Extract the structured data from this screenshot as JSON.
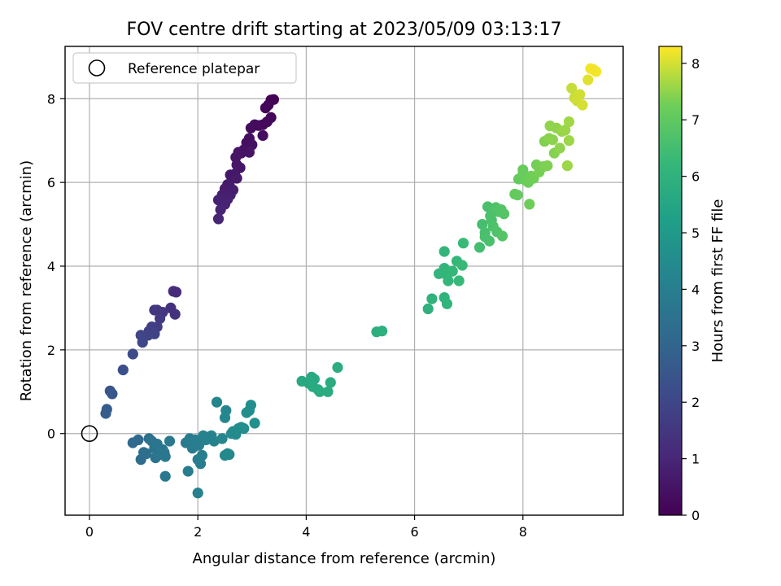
{
  "chart_data": {
    "type": "scatter",
    "title": "FOV centre drift starting at 2023/05/09 03:13:17",
    "xlabel": "Angular distance from reference (arcmin)",
    "ylabel": "Rotation from reference (arcmin)",
    "xlim": [
      -0.45,
      9.85
    ],
    "ylim": [
      -1.95,
      9.25
    ],
    "xticks": [
      0,
      2,
      4,
      6,
      8
    ],
    "yticks": [
      0,
      2,
      4,
      6,
      8
    ],
    "grid": true,
    "legend": {
      "placement": "top-left",
      "entries": [
        "Reference platepar"
      ]
    },
    "reference_point": {
      "x": 0,
      "y": 0,
      "label": "Reference platepar"
    },
    "colorbar": {
      "label": "Hours from first FF file",
      "range": [
        0,
        8.3
      ],
      "ticks": [
        0,
        1,
        2,
        3,
        4,
        5,
        6,
        7,
        8
      ],
      "colormap": "viridis"
    },
    "series": [
      {
        "points": [
          [
            3.4,
            7.98
          ],
          [
            3.35,
            7.97
          ],
          [
            3.3,
            7.85
          ],
          [
            3.25,
            7.78
          ],
          [
            3.35,
            7.55
          ],
          [
            3.28,
            7.45
          ],
          [
            3.2,
            7.38
          ],
          [
            3.12,
            7.36
          ],
          [
            3.05,
            7.38
          ],
          [
            2.98,
            7.3
          ],
          [
            3.2,
            7.12
          ],
          [
            2.95,
            7.05
          ],
          [
            2.9,
            6.95
          ],
          [
            3.0,
            6.9
          ],
          [
            2.85,
            6.78
          ],
          [
            2.8,
            6.7
          ],
          [
            2.75,
            6.72
          ],
          [
            2.95,
            6.72
          ],
          [
            2.7,
            6.6
          ],
          [
            2.72,
            6.42
          ],
          [
            2.78,
            6.35
          ],
          [
            2.68,
            6.2
          ],
          [
            2.6,
            6.18
          ],
          [
            2.72,
            6.1
          ],
          [
            2.58,
            5.95
          ],
          [
            2.55,
            5.95
          ],
          [
            2.5,
            5.85
          ],
          [
            2.65,
            5.82
          ],
          [
            2.6,
            5.7
          ],
          [
            2.45,
            5.7
          ],
          [
            2.55,
            5.6
          ],
          [
            2.38,
            5.58
          ],
          [
            2.45,
            5.55
          ],
          [
            2.5,
            5.48
          ],
          [
            2.42,
            5.35
          ],
          [
            2.38,
            5.13
          ]
        ],
        "hours": [
          0.02,
          0.05,
          0.08,
          0.12,
          0.15,
          0.18,
          0.22,
          0.25,
          0.28,
          0.3,
          0.32,
          0.35,
          0.38,
          0.4,
          0.42,
          0.45,
          0.48,
          0.5,
          0.52,
          0.55,
          0.58,
          0.6,
          0.62,
          0.65,
          0.68,
          0.7,
          0.72,
          0.75,
          0.78,
          0.8,
          0.82,
          0.85,
          0.88,
          0.9,
          0.92,
          0.95
        ]
      },
      {
        "points": [
          [
            1.6,
            3.38
          ],
          [
            1.55,
            3.4
          ],
          [
            1.5,
            3.0
          ],
          [
            1.58,
            2.85
          ],
          [
            1.35,
            2.9
          ],
          [
            1.25,
            2.95
          ],
          [
            1.2,
            2.95
          ],
          [
            1.3,
            2.75
          ],
          [
            1.25,
            2.55
          ],
          [
            1.15,
            2.55
          ],
          [
            1.1,
            2.45
          ],
          [
            1.2,
            2.38
          ],
          [
            1.08,
            2.35
          ],
          [
            0.95,
            2.35
          ],
          [
            0.98,
            2.18
          ],
          [
            0.8,
            1.9
          ],
          [
            0.62,
            1.52
          ],
          [
            0.38,
            1.02
          ],
          [
            0.42,
            0.95
          ],
          [
            0.32,
            0.58
          ],
          [
            0.3,
            0.48
          ]
        ],
        "hours": [
          1.15,
          1.2,
          1.3,
          1.35,
          1.45,
          1.5,
          1.55,
          1.6,
          1.7,
          1.75,
          1.8,
          1.85,
          1.9,
          1.95,
          2.0,
          2.1,
          2.3,
          2.5,
          2.55,
          2.7,
          2.75
        ]
      },
      {
        "points": [
          [
            0.8,
            -0.22
          ],
          [
            0.9,
            -0.15
          ],
          [
            0.95,
            -0.62
          ],
          [
            1.0,
            -0.45
          ],
          [
            1.05,
            -0.48
          ],
          [
            1.1,
            -0.12
          ],
          [
            1.15,
            -0.18
          ],
          [
            1.2,
            -0.35
          ],
          [
            1.22,
            -0.58
          ],
          [
            1.25,
            -0.25
          ],
          [
            1.3,
            -0.5
          ],
          [
            1.35,
            -0.38
          ],
          [
            1.38,
            -0.45
          ],
          [
            1.4,
            -0.55
          ],
          [
            1.4,
            -1.02
          ],
          [
            1.48,
            -0.18
          ],
          [
            1.78,
            -0.22
          ],
          [
            1.85,
            -0.12
          ],
          [
            1.9,
            -0.35
          ],
          [
            1.82,
            -0.9
          ],
          [
            1.95,
            -0.15
          ],
          [
            2.02,
            -0.28
          ],
          [
            2.0,
            -0.62
          ],
          [
            2.05,
            -0.72
          ],
          [
            2.08,
            -0.52
          ],
          [
            2.0,
            -1.42
          ],
          [
            2.1,
            -0.05
          ],
          [
            2.15,
            -0.15
          ],
          [
            2.2,
            -0.1
          ],
          [
            2.25,
            -0.05
          ],
          [
            2.3,
            -0.18
          ],
          [
            2.35,
            0.75
          ],
          [
            2.45,
            -0.12
          ],
          [
            2.5,
            0.38
          ],
          [
            2.52,
            0.55
          ],
          [
            2.55,
            -0.48
          ],
          [
            2.5,
            -0.52
          ],
          [
            2.58,
            -0.5
          ],
          [
            2.62,
            0.0
          ],
          [
            2.65,
            0.05
          ],
          [
            2.7,
            -0.02
          ],
          [
            2.75,
            0.12
          ],
          [
            2.8,
            0.15
          ],
          [
            2.85,
            0.12
          ],
          [
            2.9,
            0.5
          ],
          [
            2.95,
            0.55
          ],
          [
            2.98,
            0.68
          ],
          [
            3.05,
            0.25
          ]
        ],
        "hours": [
          3.2,
          3.25,
          3.3,
          3.35,
          3.4,
          3.45,
          3.5,
          3.55,
          3.6,
          3.62,
          3.65,
          3.68,
          3.7,
          3.72,
          3.75,
          3.78,
          3.85,
          3.88,
          3.9,
          3.92,
          3.95,
          3.98,
          4.0,
          4.02,
          4.05,
          4.08,
          4.1,
          4.12,
          4.15,
          4.18,
          4.2,
          4.25,
          4.3,
          4.32,
          4.35,
          4.38,
          4.4,
          4.42,
          4.45,
          4.48,
          4.5,
          4.52,
          4.55,
          4.58,
          4.6,
          4.62,
          4.65,
          4.68
        ]
      },
      {
        "points": [
          [
            3.92,
            1.25
          ],
          [
            4.05,
            1.2
          ],
          [
            4.1,
            1.35
          ],
          [
            4.15,
            1.3
          ],
          [
            4.12,
            1.12
          ],
          [
            4.22,
            1.05
          ],
          [
            4.25,
            1.0
          ],
          [
            4.4,
            1.0
          ],
          [
            4.45,
            1.22
          ],
          [
            4.58,
            1.58
          ],
          [
            5.3,
            2.43
          ],
          [
            5.4,
            2.45
          ]
        ],
        "hours": [
          5.6,
          5.62,
          5.64,
          5.66,
          5.68,
          5.7,
          5.72,
          5.74,
          5.76,
          5.78,
          5.85,
          5.88
        ]
      },
      {
        "points": [
          [
            6.25,
            2.98
          ],
          [
            6.32,
            3.22
          ],
          [
            6.55,
            3.25
          ],
          [
            6.6,
            3.1
          ],
          [
            6.45,
            3.82
          ],
          [
            6.55,
            3.95
          ],
          [
            6.6,
            3.78
          ],
          [
            6.62,
            3.65
          ],
          [
            6.7,
            3.88
          ],
          [
            6.78,
            4.12
          ],
          [
            6.82,
            3.65
          ],
          [
            6.88,
            4.02
          ],
          [
            6.9,
            4.55
          ],
          [
            6.55,
            4.35
          ],
          [
            7.2,
            4.45
          ],
          [
            7.25,
            5.0
          ],
          [
            7.3,
            4.8
          ],
          [
            7.35,
            5.42
          ],
          [
            7.38,
            4.6
          ],
          [
            7.42,
            5.1
          ],
          [
            7.45,
            4.95
          ],
          [
            7.5,
            5.4
          ],
          [
            7.52,
            4.82
          ],
          [
            7.55,
            5.3
          ],
          [
            7.6,
            5.35
          ],
          [
            7.62,
            4.72
          ],
          [
            7.65,
            5.25
          ],
          [
            7.3,
            4.7
          ],
          [
            7.4,
            5.2
          ]
        ],
        "hours": [
          5.95,
          6.0,
          6.05,
          6.08,
          6.1,
          6.12,
          6.15,
          6.18,
          6.2,
          6.22,
          6.25,
          6.28,
          6.3,
          6.12,
          6.5,
          6.55,
          6.58,
          6.6,
          6.62,
          6.65,
          6.68,
          6.7,
          6.72,
          6.75,
          6.78,
          6.8,
          6.82,
          6.6,
          6.65
        ]
      },
      {
        "points": [
          [
            7.85,
            5.72
          ],
          [
            7.9,
            5.7
          ],
          [
            7.92,
            6.08
          ],
          [
            8.0,
            6.3
          ],
          [
            8.0,
            6.2
          ],
          [
            8.05,
            6.05
          ],
          [
            8.1,
            6.0
          ],
          [
            8.12,
            5.48
          ],
          [
            8.15,
            6.15
          ],
          [
            8.2,
            6.1
          ],
          [
            8.25,
            6.42
          ],
          [
            8.3,
            6.25
          ],
          [
            8.38,
            6.38
          ],
          [
            8.4,
            6.98
          ],
          [
            8.45,
            6.4
          ],
          [
            8.48,
            7.05
          ],
          [
            8.5,
            7.35
          ],
          [
            8.55,
            7.02
          ],
          [
            8.58,
            6.7
          ],
          [
            8.62,
            7.3
          ],
          [
            8.68,
            6.82
          ],
          [
            8.72,
            7.22
          ],
          [
            8.78,
            7.25
          ],
          [
            8.82,
            6.4
          ],
          [
            8.85,
            7.45
          ],
          [
            8.85,
            7.0
          ],
          [
            8.9,
            8.25
          ],
          [
            8.95,
            8.02
          ],
          [
            9.0,
            7.95
          ],
          [
            9.05,
            8.1
          ],
          [
            9.1,
            7.85
          ],
          [
            9.2,
            8.45
          ],
          [
            9.25,
            8.72
          ],
          [
            9.35,
            8.65
          ],
          [
            9.3,
            8.7
          ]
        ],
        "hours": [
          7.05,
          7.08,
          7.1,
          7.12,
          7.15,
          7.18,
          7.2,
          7.22,
          7.25,
          7.28,
          7.3,
          7.32,
          7.35,
          7.4,
          7.38,
          7.45,
          7.5,
          7.48,
          7.42,
          7.52,
          7.5,
          7.55,
          7.58,
          7.6,
          7.62,
          7.6,
          7.9,
          7.92,
          7.95,
          7.98,
          8.0,
          8.1,
          8.2,
          8.25,
          8.22
        ]
      }
    ]
  }
}
